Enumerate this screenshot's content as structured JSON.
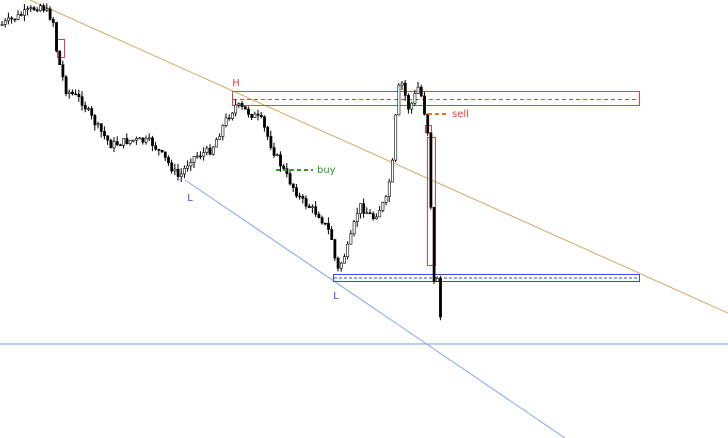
{
  "labels": {
    "high": "H",
    "low_1": "L",
    "low_2": "L",
    "buy": "buy",
    "sell": "sell"
  }
}
